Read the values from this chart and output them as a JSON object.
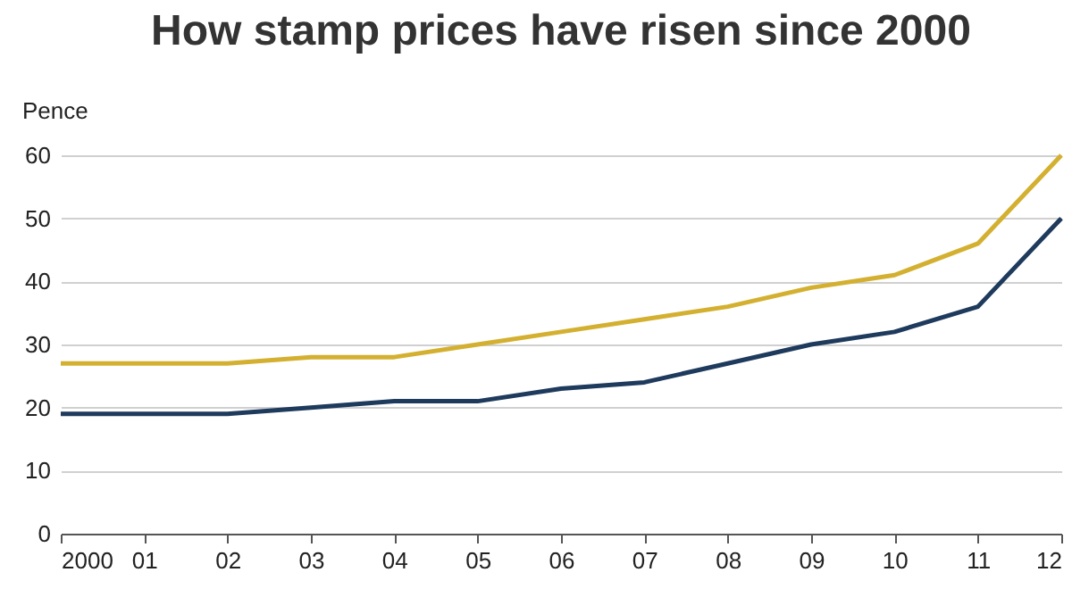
{
  "chart_data": {
    "type": "line",
    "title": "How stamp prices have risen since 2000",
    "ylabel": "Pence",
    "categories": [
      "2000",
      "01",
      "02",
      "03",
      "04",
      "05",
      "06",
      "07",
      "08",
      "09",
      "10",
      "11",
      "12"
    ],
    "series": [
      {
        "color": "#d4b031",
        "values": [
          27,
          27,
          27,
          28,
          28,
          30,
          32,
          34,
          36,
          39,
          41,
          46,
          60
        ]
      },
      {
        "color": "#1e3a5c",
        "values": [
          19,
          19,
          19,
          20,
          21,
          21,
          23,
          24,
          27,
          30,
          32,
          36,
          50
        ]
      }
    ],
    "ylim": [
      0,
      60
    ],
    "yticks": [
      0,
      10,
      20,
      30,
      40,
      50,
      60
    ],
    "grid": "y",
    "line_style": "solid"
  }
}
